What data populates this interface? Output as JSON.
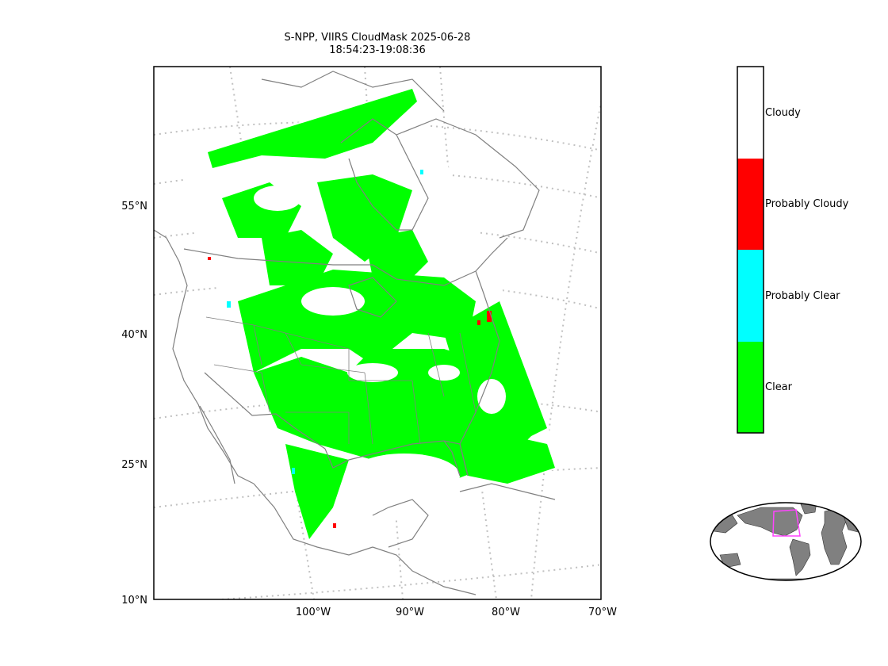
{
  "title": {
    "line1": "S-NPP, VIIRS CloudMask 2025-06-28",
    "line2": "18:54:23-19:08:36"
  },
  "axes": {
    "lat_ticks": [
      "55°N",
      "40°N",
      "25°N",
      "10°N"
    ],
    "lon_ticks": [
      "100°W",
      "90°W",
      "80°W",
      "70°W"
    ]
  },
  "legend": {
    "classes": [
      {
        "label": "Cloudy",
        "color": "#ffffff"
      },
      {
        "label": "Probably Cloudy",
        "color": "#ff0000"
      },
      {
        "label": "Probably Clear",
        "color": "#00ffff"
      },
      {
        "label": "Clear",
        "color": "#00ff00"
      }
    ]
  },
  "colors": {
    "coastline": "#808080",
    "graticule": "#c0c0c0",
    "land_inset": "#808080",
    "inset_box": "#ff44ff"
  }
}
